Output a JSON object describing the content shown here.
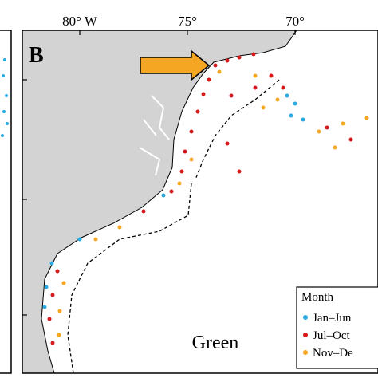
{
  "panel_label": "B",
  "lon_labels": [
    "80° W",
    "75°",
    "70°"
  ],
  "legend": {
    "title": "Month",
    "items": [
      "Jan–Jun",
      "Jul–Oct",
      "Nov–De"
    ]
  },
  "region_label": "Green"
}
